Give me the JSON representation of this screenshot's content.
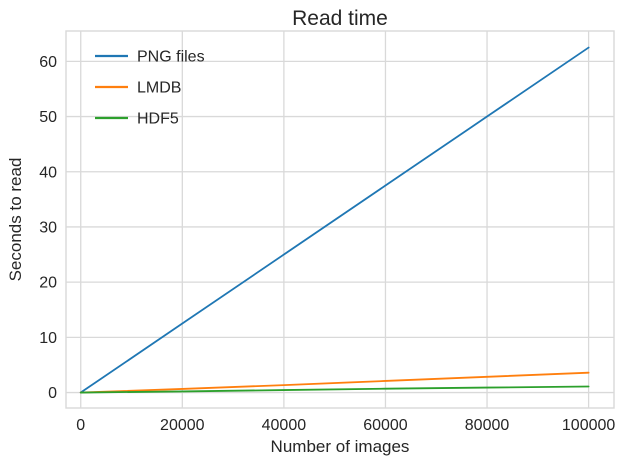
{
  "title": "Read time",
  "colors": {
    "background": "#ffffff",
    "grid": "#d9d9d9",
    "spine": "#d9d9d9",
    "text": "#262626"
  },
  "chart_data": {
    "type": "line",
    "title": "Read time",
    "xlabel": "Number of images",
    "ylabel": "Seconds to read",
    "xlim": [
      -2900,
      105000
    ],
    "ylim": [
      -2.8,
      65.5
    ],
    "grid": true,
    "legend_position": "upper left",
    "legend_frame": false,
    "x": [
      0,
      20000,
      40000,
      60000,
      80000,
      100000
    ],
    "x_tick_labels": [
      "0",
      "20000",
      "40000",
      "60000",
      "80000",
      "100000"
    ],
    "y_ticks": [
      0,
      10,
      20,
      30,
      40,
      50,
      60
    ],
    "y_tick_labels": [
      "0",
      "10",
      "20",
      "30",
      "40",
      "50",
      "60"
    ],
    "series": [
      {
        "name": "PNG files",
        "color": "#1f77b4",
        "values": [
          0,
          12.5,
          25,
          37.5,
          50,
          62.5
        ]
      },
      {
        "name": "LMDB",
        "color": "#ff7f0e",
        "values": [
          0,
          0.65,
          1.35,
          2.1,
          2.85,
          3.6
        ]
      },
      {
        "name": "HDF5",
        "color": "#2ca02c",
        "values": [
          0,
          0.2,
          0.45,
          0.7,
          0.9,
          1.1
        ]
      }
    ]
  }
}
